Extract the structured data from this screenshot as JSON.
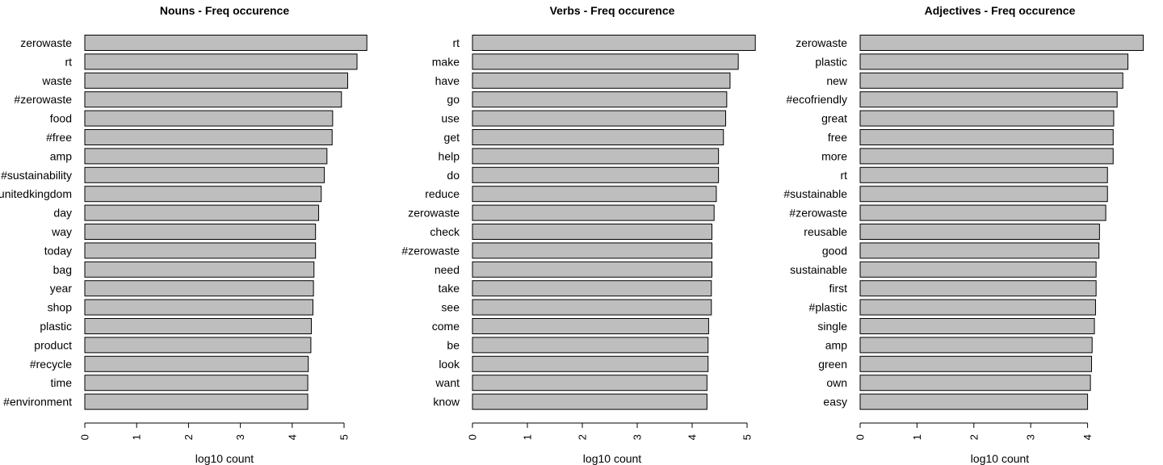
{
  "chart_data": [
    {
      "type": "bar",
      "orientation": "horizontal",
      "title": "Nouns - Freq occurence",
      "xlabel": "log10 count",
      "xlim": [
        0,
        5.5
      ],
      "xticks": [
        0,
        1,
        2,
        3,
        4,
        5
      ],
      "categories": [
        "zerowaste",
        "rt",
        "waste",
        "#zerowaste",
        "food",
        "#free",
        "amp",
        "#sustainability",
        "#unitedkingdom",
        "day",
        "way",
        "today",
        "bag",
        "year",
        "shop",
        "plastic",
        "product",
        "#recycle",
        "time",
        "#environment"
      ],
      "values": [
        5.44,
        5.25,
        5.07,
        4.95,
        4.78,
        4.77,
        4.67,
        4.62,
        4.56,
        4.51,
        4.45,
        4.45,
        4.42,
        4.41,
        4.4,
        4.37,
        4.36,
        4.31,
        4.3,
        4.3
      ]
    },
    {
      "type": "bar",
      "orientation": "horizontal",
      "title": "Verbs - Freq occurence",
      "xlabel": "log10 count",
      "xlim": [
        0,
        5.2
      ],
      "xticks": [
        0,
        1,
        2,
        3,
        4,
        5
      ],
      "categories": [
        "rt",
        "make",
        "have",
        "go",
        "use",
        "get",
        "help",
        "do",
        "reduce",
        "zerowaste",
        "check",
        "#zerowaste",
        "need",
        "take",
        "see",
        "come",
        "be",
        "look",
        "want",
        "know"
      ],
      "values": [
        5.15,
        4.84,
        4.69,
        4.63,
        4.61,
        4.57,
        4.48,
        4.48,
        4.44,
        4.4,
        4.36,
        4.36,
        4.36,
        4.35,
        4.35,
        4.3,
        4.29,
        4.29,
        4.27,
        4.27
      ]
    },
    {
      "type": "bar",
      "orientation": "horizontal",
      "title": "Adjectives - Freq occurence",
      "xlabel": "log10 count",
      "xlim": [
        0,
        5.0
      ],
      "xticks": [
        0,
        1,
        2,
        3,
        4
      ],
      "categories": [
        "zerowaste",
        "plastic",
        "new",
        "#ecofriendly",
        "great",
        "free",
        "more",
        "rt",
        "#sustainable",
        "#zerowaste",
        "reusable",
        "good",
        "sustainable",
        "first",
        "#plastic",
        "single",
        "amp",
        "green",
        "own",
        "easy"
      ],
      "values": [
        4.98,
        4.71,
        4.62,
        4.52,
        4.46,
        4.45,
        4.45,
        4.35,
        4.35,
        4.32,
        4.21,
        4.2,
        4.15,
        4.15,
        4.14,
        4.12,
        4.08,
        4.07,
        4.05,
        4.0
      ]
    }
  ]
}
